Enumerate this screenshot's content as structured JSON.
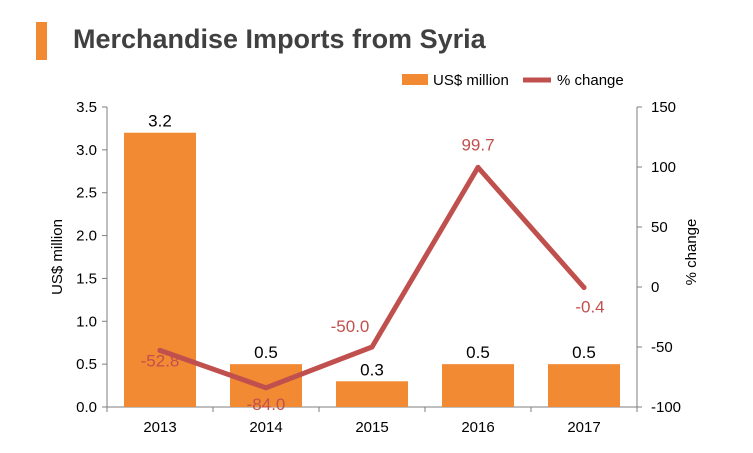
{
  "title": "Merchandise Imports from Syria",
  "colors": {
    "bar": "#f28a33",
    "line": "#c0504d",
    "accent": "#f28a33",
    "axis": "#7f7f7f"
  },
  "chart_data": {
    "type": "bar",
    "title": "Merchandise Imports from Syria",
    "categories": [
      "2013",
      "2014",
      "2015",
      "2016",
      "2017"
    ],
    "series": [
      {
        "name": "US$ million",
        "type": "bar",
        "axis": "left",
        "values": [
          3.2,
          0.5,
          0.3,
          0.5,
          0.5
        ],
        "labels": [
          "3.2",
          "0.5",
          "0.3",
          "0.5",
          "0.5"
        ]
      },
      {
        "name": "% change",
        "type": "line",
        "axis": "right",
        "values": [
          -52.8,
          -84.0,
          -50.0,
          99.7,
          -0.4
        ],
        "labels": [
          "-52.8",
          "-84.0",
          "-50.0",
          "99.7",
          "-0.4"
        ]
      }
    ],
    "ylabel": "US$ million",
    "ylim": [
      0,
      3.5
    ],
    "yticks": [
      "0.0",
      "0.5",
      "1.0",
      "1.5",
      "2.0",
      "2.5",
      "3.0",
      "3.5"
    ],
    "y2label": "% change",
    "y2lim": [
      -100,
      150
    ],
    "y2ticks": [
      "-100",
      "-50",
      "0",
      "50",
      "100",
      "150"
    ],
    "legend": "top-right",
    "grid": false
  }
}
